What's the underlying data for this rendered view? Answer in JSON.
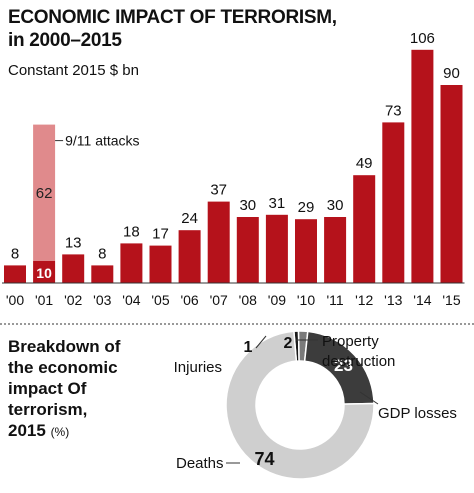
{
  "header": {
    "title_line1": "ECONOMIC IMPACT OF TERRORISM,",
    "title_line2": "in 2000–2015",
    "subtitle": "Constant 2015 $ bn"
  },
  "breakdown": {
    "title_lines": [
      "Breakdown of",
      "the economic",
      "impact Of",
      "terrorism,"
    ],
    "year": "2015",
    "unit": "(%)"
  },
  "chart_data": [
    {
      "type": "bar",
      "title": "ECONOMIC IMPACT OF TERRORISM, in 2000–2015",
      "subtitle": "Constant 2015 $ bn",
      "categories": [
        "'00",
        "'01",
        "'02",
        "'03",
        "'04",
        "'05",
        "'06",
        "'07",
        "'08",
        "'09",
        "'10",
        "'11",
        "'12",
        "'13",
        "'14",
        "'15"
      ],
      "series": [
        {
          "values": [
            8,
            10,
            13,
            8,
            18,
            17,
            24,
            37,
            30,
            31,
            29,
            30,
            49,
            73,
            106,
            90
          ]
        },
        {
          "name": "9/11 attacks",
          "values": [
            0,
            62,
            0,
            0,
            0,
            0,
            0,
            0,
            0,
            0,
            0,
            0,
            0,
            0,
            0,
            0
          ]
        }
      ],
      "stacked": true,
      "ylim": [
        0,
        110
      ],
      "annotation": "9/11 attacks",
      "colors": {
        "main": "#b5121b",
        "highlight": "#e08a8c"
      }
    },
    {
      "type": "pie",
      "donut": true,
      "categories": [
        "Deaths",
        "GDP losses",
        "Property destruction",
        "Injuries"
      ],
      "values": [
        74,
        23,
        2,
        1
      ],
      "labels": [
        "74",
        "23",
        "2",
        "1"
      ],
      "colors": {
        "Deaths": "#cfcfcf",
        "GDP losses": "#3c3c3c",
        "Property destruction": "#7a7a7a",
        "Injuries": "#1a1a1a"
      }
    }
  ]
}
